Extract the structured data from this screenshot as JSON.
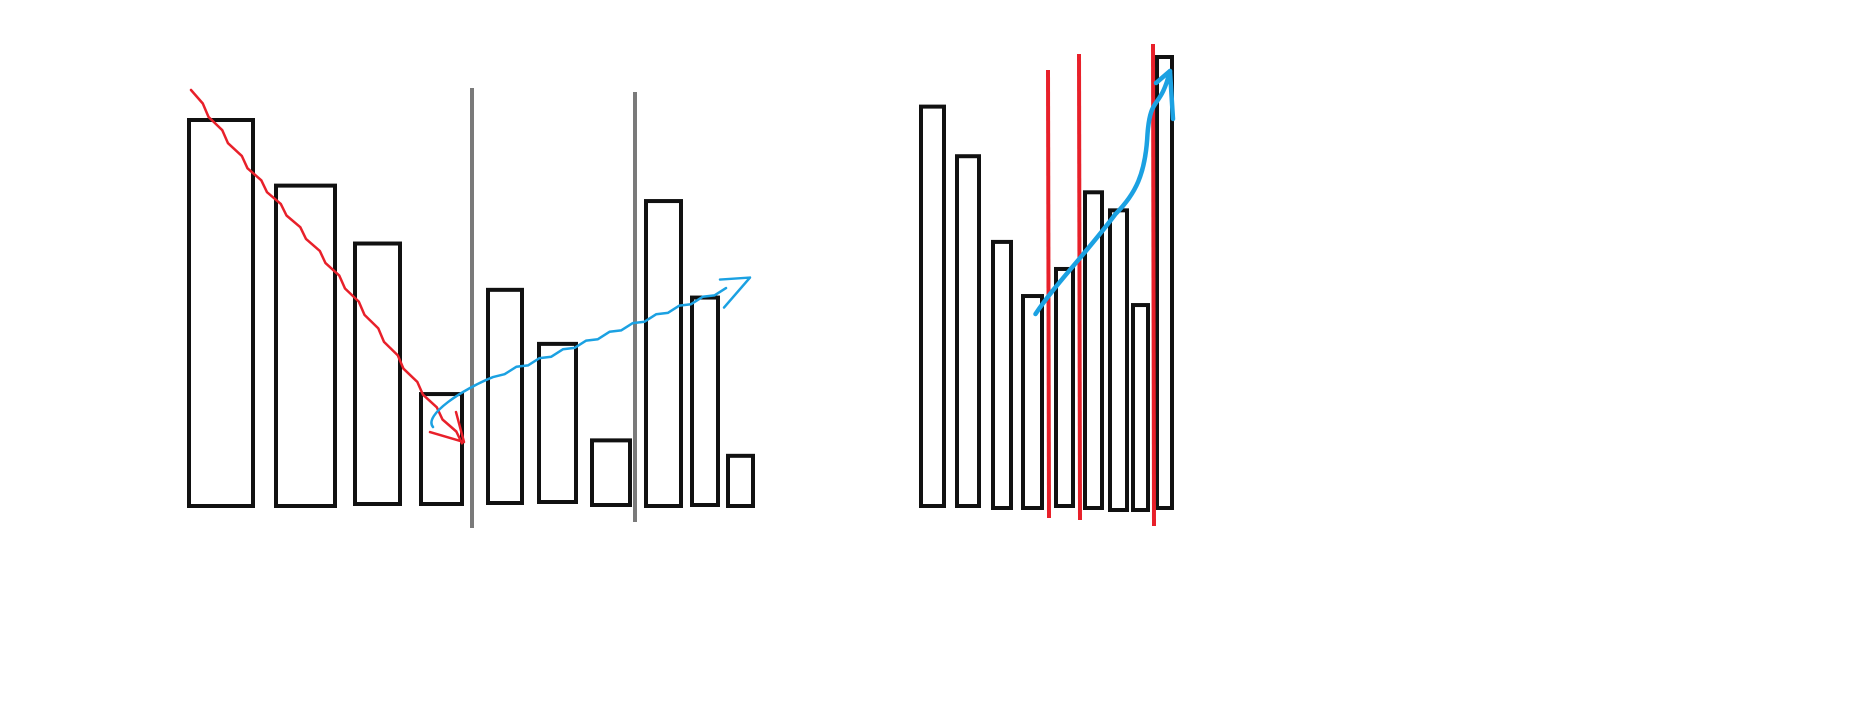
{
  "chart_data": [
    {
      "type": "bar",
      "title": "",
      "xlabel": "",
      "ylabel": "",
      "ylim": [
        0,
        100
      ],
      "values": [
        100,
        83,
        68,
        29,
        56,
        42,
        17,
        79,
        54,
        13
      ],
      "dividers_after_bar_index": [
        3,
        7
      ],
      "trend_down": {
        "from_bar": 0,
        "to_bar": 3,
        "color": "#e8202a"
      },
      "trend_up": {
        "from_bar": 3,
        "to_bar": 8,
        "color": "#1ba1e2"
      },
      "grid": false,
      "legend": "none"
    },
    {
      "type": "bar",
      "title": "",
      "xlabel": "",
      "ylabel": "",
      "ylim": [
        0,
        100
      ],
      "values": [
        89,
        78,
        59,
        47,
        53,
        70,
        66,
        45,
        100
      ],
      "dividers_after_bar_index": [
        3,
        4,
        7
      ],
      "trend_up": {
        "from_bar": 3,
        "to_bar": 8,
        "color": "#1ba1e2"
      },
      "grid": false,
      "legend": "none"
    }
  ],
  "colors": {
    "bar_outline": "#111111",
    "divider_left": "#7a7a7a",
    "divider_right": "#e8202a",
    "trend_down": "#e8202a",
    "trend_up": "#1ba1e2"
  }
}
